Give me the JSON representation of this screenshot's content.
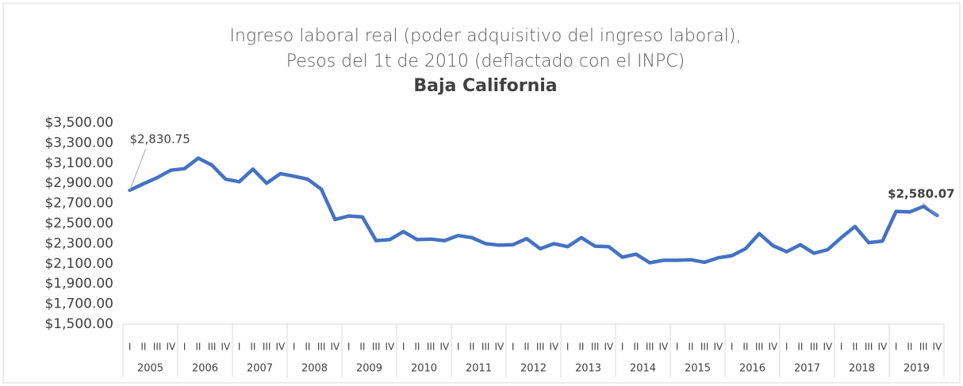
{
  "chart_data": {
    "type": "line",
    "title": "Ingreso laboral real (poder adquisitivo del ingreso laboral),",
    "subtitle": "Pesos del 1t de 2010 (deflactado con el INPC)",
    "region": "Baja California",
    "categories": [
      "I",
      "II",
      "III",
      "IV",
      "I",
      "II",
      "III",
      "IV",
      "I",
      "II",
      "III",
      "IV",
      "I",
      "II",
      "III",
      "IV",
      "I",
      "II",
      "III",
      "IV",
      "I",
      "II",
      "III",
      "IV",
      "I",
      "II",
      "III",
      "IV",
      "I",
      "II",
      "III",
      "IV",
      "I",
      "II",
      "III",
      "IV",
      "I",
      "II",
      "III",
      "IV",
      "I",
      "II",
      "III",
      "IV",
      "I",
      "II",
      "III",
      "IV",
      "I",
      "II",
      "III",
      "IV",
      "I",
      "II",
      "III",
      "IV",
      "I",
      "II",
      "III",
      "IV"
    ],
    "years": [
      "2005",
      "2006",
      "2007",
      "2008",
      "2009",
      "2010",
      "2011",
      "2012",
      "2013",
      "2014",
      "2015",
      "2016",
      "2017",
      "2018",
      "2019"
    ],
    "values": [
      2830.75,
      2895,
      2955,
      3030,
      3045,
      3150,
      3080,
      2940,
      2915,
      3040,
      2900,
      2995,
      2970,
      2940,
      2840,
      2540,
      2575,
      2565,
      2330,
      2340,
      2420,
      2340,
      2345,
      2330,
      2380,
      2360,
      2300,
      2285,
      2290,
      2350,
      2250,
      2300,
      2270,
      2360,
      2275,
      2270,
      2165,
      2195,
      2110,
      2135,
      2135,
      2140,
      2115,
      2160,
      2180,
      2250,
      2400,
      2280,
      2220,
      2290,
      2205,
      2240,
      2360,
      2470,
      2310,
      2325,
      2620,
      2615,
      2670,
      2580.07
    ],
    "value_labels": [
      "$2,830.75",
      null,
      null,
      null,
      null,
      null,
      null,
      null,
      null,
      null,
      null,
      null,
      null,
      null,
      null,
      null,
      null,
      null,
      null,
      null,
      null,
      null,
      null,
      null,
      null,
      null,
      null,
      null,
      null,
      null,
      null,
      null,
      null,
      null,
      null,
      null,
      null,
      null,
      null,
      null,
      null,
      null,
      null,
      null,
      null,
      null,
      null,
      null,
      null,
      null,
      null,
      null,
      null,
      null,
      null,
      null,
      null,
      null,
      null,
      "$2,580.07"
    ],
    "color": "#4472c4",
    "ylim": [
      1500,
      3500
    ],
    "yticks": [
      {
        "value": 1500,
        "label": "$1,500.00"
      },
      {
        "value": 1700,
        "label": "$1,700.00"
      },
      {
        "value": 1900,
        "label": "$1,900.00"
      },
      {
        "value": 2100,
        "label": "$2,100.00"
      },
      {
        "value": 2300,
        "label": "$2,300.00"
      },
      {
        "value": 2500,
        "label": "$2,500.00"
      },
      {
        "value": 2700,
        "label": "$2,700.00"
      },
      {
        "value": 2900,
        "label": "$2,900.00"
      },
      {
        "value": 3100,
        "label": "$3,100.00"
      },
      {
        "value": 3300,
        "label": "$3,300.00"
      },
      {
        "value": 3500,
        "label": "$3,500.00"
      }
    ],
    "grid": false
  }
}
